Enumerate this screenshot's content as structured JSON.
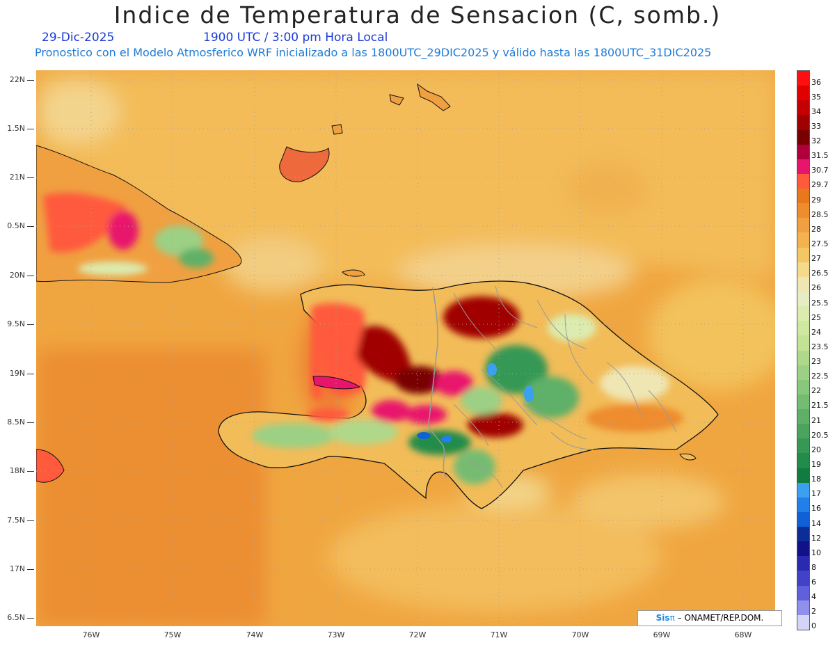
{
  "title": "Indice de Temperatura de Sensacion (C, somb.)",
  "date": "29-Dic-2025",
  "time": "1900 UTC / 3:00 pm Hora Local",
  "forecast_text": "Pronostico con el Modelo Atmosferico WRF inicializado a las 1800UTC_29DIC2025 y válido hasta las  1800UTC_31DIC2025",
  "lat_labels": [
    "22N",
    "1.5N",
    "21N",
    "0.5N",
    "20N",
    "9.5N",
    "19N",
    "8.5N",
    "18N",
    "7.5N",
    "17N",
    "6.5N"
  ],
  "lon_labels": [
    "76W",
    "75W",
    "74W",
    "73W",
    "72W",
    "71W",
    "70W",
    "69W",
    "68W"
  ],
  "legend": {
    "labels": [
      "36",
      "35",
      "34",
      "33",
      "32",
      "31.5",
      "30.7",
      "29.7",
      "29",
      "28.5",
      "28",
      "27.5",
      "27",
      "26.5",
      "26",
      "25.5",
      "25",
      "24",
      "23.5",
      "23",
      "22.5",
      "22",
      "21.5",
      "21",
      "20.5",
      "20",
      "19",
      "18",
      "17",
      "16",
      "14",
      "12",
      "10",
      "8",
      "6",
      "4",
      "2",
      "0"
    ],
    "colors": [
      "#ff1010",
      "#e00000",
      "#c40000",
      "#a00000",
      "#780000",
      "#b0003c",
      "#e8156c",
      "#ff5a3c",
      "#e8781e",
      "#ee8c2e",
      "#f0a040",
      "#f2b250",
      "#f4c664",
      "#f4da8a",
      "#efe6b4",
      "#e8ecc4",
      "#dcecb0",
      "#cfe8a0",
      "#c2e294",
      "#b0d88a",
      "#9cd084",
      "#88c87c",
      "#74bc72",
      "#5eb068",
      "#4aa45e",
      "#369854",
      "#228c4a",
      "#107c40",
      "#3ca0f0",
      "#2080e8",
      "#1060d8",
      "#0c2c98",
      "#121288",
      "#2a2ab0",
      "#4242c8",
      "#6060dc",
      "#9090ec",
      "#d4d4f8"
    ]
  },
  "credit": {
    "logo": "Sis",
    "logo2": "π",
    "text": "– ONAMET/REP.DOM."
  },
  "colors": {
    "base_orange": "#f0a640",
    "title": "#222222",
    "date_blue": "#1a3bd6",
    "text_blue": "#1e7bd6"
  }
}
